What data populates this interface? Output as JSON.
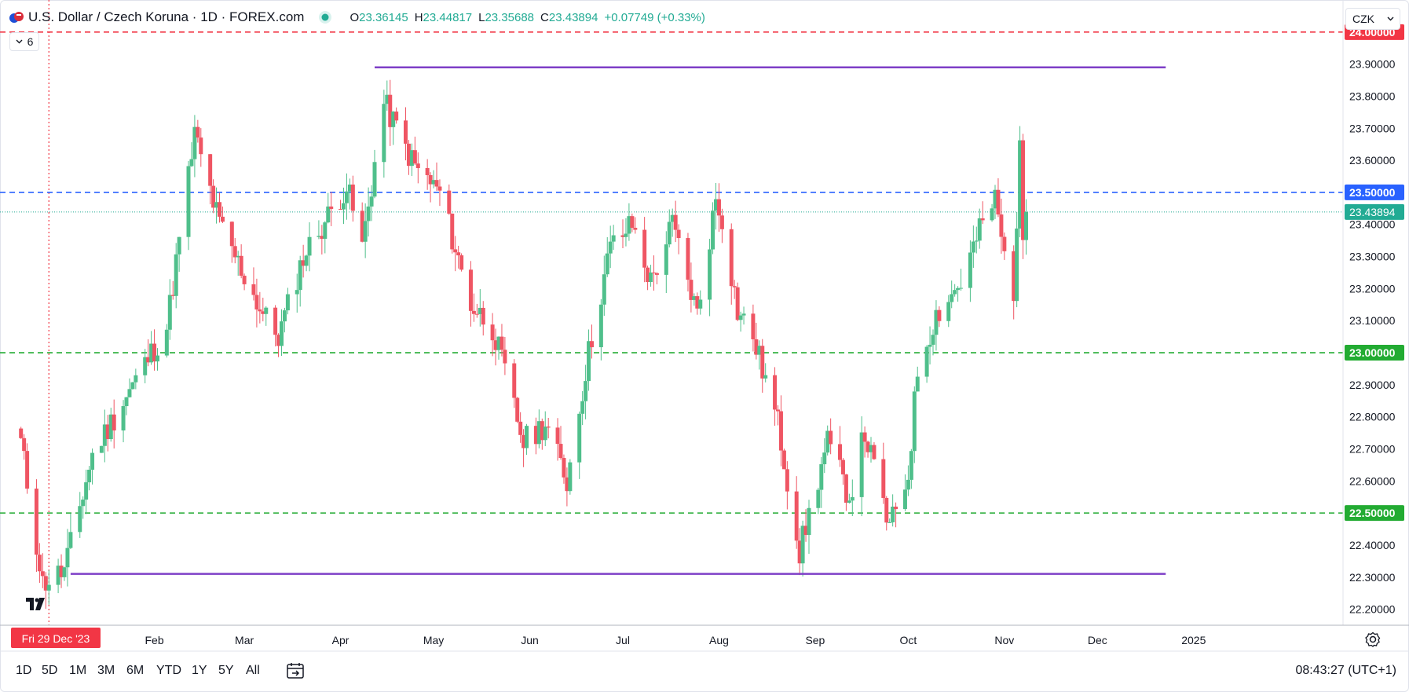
{
  "header": {
    "symbol_title": "U.S. Dollar / Czech Koruna · 1D · FOREX.com",
    "ohlc": {
      "o_label": "O",
      "o": "23.36145",
      "h_label": "H",
      "h": "23.44817",
      "l_label": "L",
      "l": "23.35688",
      "c_label": "C",
      "c": "23.43894",
      "change": "+0.07749 (+0.33%)"
    },
    "indicator_count": "6",
    "currency": "CZK"
  },
  "time_range": {
    "buttons": [
      "1D",
      "5D",
      "1M",
      "3M",
      "6M",
      "YTD",
      "1Y",
      "5Y",
      "All"
    ],
    "clock": "08:43:27 (UTC+1)"
  },
  "colors": {
    "up": "#4fbf8b",
    "down": "#ef5563",
    "red_level": "#f23645",
    "blue_level": "#2962ff",
    "green_level": "#22ab32",
    "range_line": "#7e3fc7",
    "last_price": "#22ab94"
  },
  "chart_data": {
    "type": "candlestick",
    "ylim": [
      22.15,
      24.1
    ],
    "y_ticks": [
      "24.00000",
      "23.90000",
      "23.80000",
      "23.70000",
      "23.60000",
      "23.50000",
      "23.40000",
      "23.30000",
      "23.20000",
      "23.10000",
      "23.00000",
      "22.90000",
      "22.80000",
      "22.70000",
      "22.60000",
      "22.50000",
      "22.40000",
      "22.30000",
      "22.20000"
    ],
    "x_labels": [
      {
        "label": "Feb",
        "date": "2024-02-01"
      },
      {
        "label": "Mar",
        "date": "2024-03-01"
      },
      {
        "label": "Apr",
        "date": "2024-04-01"
      },
      {
        "label": "May",
        "date": "2024-05-01"
      },
      {
        "label": "Jun",
        "date": "2024-06-01"
      },
      {
        "label": "Jul",
        "date": "2024-07-01"
      },
      {
        "label": "Aug",
        "date": "2024-08-01"
      },
      {
        "label": "Sep",
        "date": "2024-09-01"
      },
      {
        "label": "Oct",
        "date": "2024-10-01"
      },
      {
        "label": "Nov",
        "date": "2024-11-01"
      },
      {
        "label": "Dec",
        "date": "2024-12-01"
      },
      {
        "label": "2025",
        "date": "2025-01-01"
      }
    ],
    "crosshair_date_label": "Fri 29 Dec '23",
    "crosshair_date": "2023-12-29",
    "horizontal_levels": [
      {
        "price": 24.0,
        "label": "24.00000",
        "style": "dashed",
        "color": "#f23645"
      },
      {
        "price": 23.5,
        "label": "23.50000",
        "style": "dashed",
        "color": "#2962ff"
      },
      {
        "price": 23.0,
        "label": "23.00000",
        "style": "dashed",
        "color": "#22ab32"
      },
      {
        "price": 22.5,
        "label": "22.50000",
        "style": "dashed",
        "color": "#22ab32"
      }
    ],
    "last_price": {
      "price": 23.43894,
      "label": "23.43894"
    },
    "range_lines": [
      {
        "price": 23.89,
        "from": "2024-04-12",
        "to": "2024-12-23"
      },
      {
        "price": 22.31,
        "from": "2024-01-05",
        "to": "2024-12-23"
      }
    ],
    "anchors": [
      {
        "date": "2023-12-20",
        "close": 22.72
      },
      {
        "date": "2023-12-27",
        "close": 22.28
      },
      {
        "date": "2024-01-03",
        "close": 22.32
      },
      {
        "date": "2024-01-12",
        "close": 22.68
      },
      {
        "date": "2024-01-22",
        "close": 22.85
      },
      {
        "date": "2024-02-05",
        "close": 23.08
      },
      {
        "date": "2024-02-12",
        "close": 23.55
      },
      {
        "date": "2024-02-14",
        "close": 23.68
      },
      {
        "date": "2024-02-22",
        "close": 23.4
      },
      {
        "date": "2024-03-07",
        "close": 23.12
      },
      {
        "date": "2024-03-12",
        "close": 23.05
      },
      {
        "date": "2024-03-20",
        "close": 23.3
      },
      {
        "date": "2024-04-03",
        "close": 23.52
      },
      {
        "date": "2024-04-08",
        "close": 23.33
      },
      {
        "date": "2024-04-15",
        "close": 23.78
      },
      {
        "date": "2024-04-25",
        "close": 23.58
      },
      {
        "date": "2024-05-03",
        "close": 23.5
      },
      {
        "date": "2024-05-13",
        "close": 23.15
      },
      {
        "date": "2024-05-20",
        "close": 23.08
      },
      {
        "date": "2024-05-30",
        "close": 22.72
      },
      {
        "date": "2024-06-06",
        "close": 22.78
      },
      {
        "date": "2024-06-13",
        "close": 22.6
      },
      {
        "date": "2024-06-20",
        "close": 23.0
      },
      {
        "date": "2024-06-27",
        "close": 23.33
      },
      {
        "date": "2024-07-04",
        "close": 23.4
      },
      {
        "date": "2024-07-10",
        "close": 23.22
      },
      {
        "date": "2024-07-17",
        "close": 23.4
      },
      {
        "date": "2024-07-25",
        "close": 23.12
      },
      {
        "date": "2024-07-31",
        "close": 23.48
      },
      {
        "date": "2024-08-02",
        "close": 23.42
      },
      {
        "date": "2024-08-07",
        "close": 23.13
      },
      {
        "date": "2024-08-12",
        "close": 23.05
      },
      {
        "date": "2024-08-20",
        "close": 22.78
      },
      {
        "date": "2024-08-27",
        "close": 22.38
      },
      {
        "date": "2024-09-05",
        "close": 22.72
      },
      {
        "date": "2024-09-12",
        "close": 22.55
      },
      {
        "date": "2024-09-17",
        "close": 22.75
      },
      {
        "date": "2024-09-25",
        "close": 22.45
      },
      {
        "date": "2024-10-01",
        "close": 22.62
      },
      {
        "date": "2024-10-04",
        "close": 22.95
      },
      {
        "date": "2024-10-10",
        "close": 23.12
      },
      {
        "date": "2024-10-18",
        "close": 23.22
      },
      {
        "date": "2024-10-24",
        "close": 23.38
      },
      {
        "date": "2024-10-29",
        "close": 23.48
      },
      {
        "date": "2024-11-01",
        "close": 23.3
      },
      {
        "date": "2024-11-04",
        "close": 23.2
      },
      {
        "date": "2024-11-06",
        "close": 23.62
      },
      {
        "date": "2024-11-07",
        "close": 23.36
      },
      {
        "date": "2024-11-08",
        "close": 23.43894
      }
    ]
  }
}
